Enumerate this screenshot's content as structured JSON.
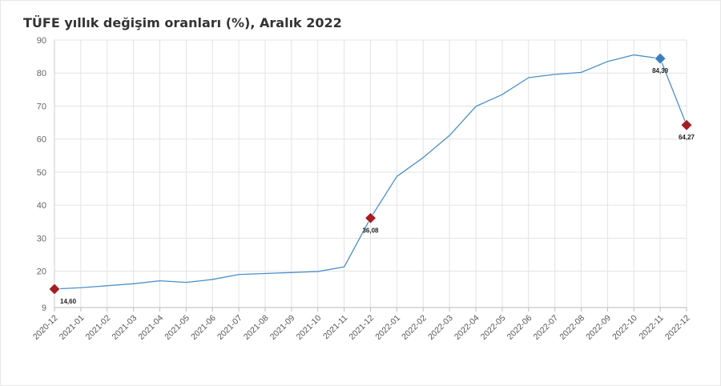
{
  "chart_data": {
    "type": "line",
    "title": "TÜFE yıllık değişim oranları (%), Aralık 2022",
    "xlabel": "",
    "ylabel": "",
    "y_ticks": [
      9,
      20,
      30,
      40,
      50,
      60,
      70,
      80,
      90
    ],
    "ylim": [
      9,
      90
    ],
    "grid": true,
    "legend": "none",
    "colors": {
      "line": "#4a90c8",
      "marker_red": "#a51c24",
      "marker_blue": "#3a7fc0",
      "grid": "#e3e3e3"
    },
    "categories": [
      "2020-12",
      "2021-01",
      "2021-02",
      "2021-03",
      "2021-04",
      "2021-05",
      "2021-06",
      "2021-07",
      "2021-08",
      "2021-09",
      "2021-10",
      "2021-11",
      "2021-12",
      "2022-01",
      "2022-02",
      "2022-03",
      "2022-04",
      "2022-05",
      "2022-06",
      "2022-07",
      "2022-08",
      "2022-09",
      "2022-10",
      "2022-11",
      "2022-12"
    ],
    "series": [
      {
        "values": [
          14.6,
          15.0,
          15.6,
          16.2,
          17.1,
          16.6,
          17.5,
          19.0,
          19.3,
          19.6,
          19.9,
          21.3,
          36.08,
          48.7,
          54.4,
          61.1,
          69.9,
          73.5,
          78.6,
          79.6,
          80.2,
          83.5,
          85.5,
          84.39,
          64.27
        ]
      }
    ],
    "highlighted_points": [
      {
        "category": "2020-12",
        "label": "14,60",
        "color": "#a51c24"
      },
      {
        "category": "2021-12",
        "label": "36,08",
        "color": "#a51c24"
      },
      {
        "category": "2022-11",
        "label": "84,39",
        "color": "#3a7fc0"
      },
      {
        "category": "2022-12",
        "label": "64,27",
        "color": "#a51c24"
      }
    ]
  }
}
